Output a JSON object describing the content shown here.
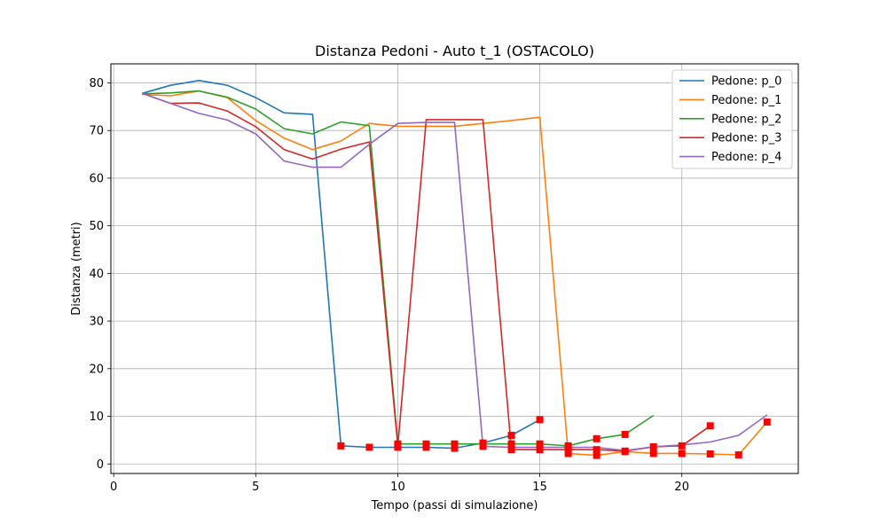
{
  "chart_data": {
    "type": "line",
    "title": "Distanza Pedoni - Auto t_1 (OSTACOLO)",
    "xlabel": "Tempo (passi di simulazione)",
    "ylabel": "Distanza (metri)",
    "xlim": [
      -0.1,
      24.1
    ],
    "ylim": [
      -2,
      84
    ],
    "xticks": [
      0,
      5,
      10,
      15,
      20
    ],
    "yticks": [
      0,
      10,
      20,
      30,
      40,
      50,
      60,
      70,
      80
    ],
    "grid": true,
    "legend_position": "top-right",
    "marker_color": "#ff0000",
    "series": [
      {
        "name": "Pedone: p_0",
        "color": "#1f77b4",
        "x": [
          1,
          2,
          3,
          4,
          5,
          6,
          7,
          8,
          9,
          10,
          11,
          12,
          13,
          14,
          15
        ],
        "y": [
          77.8,
          79.5,
          80.5,
          79.5,
          76.9,
          73.7,
          73.4,
          3.8,
          3.5,
          3.5,
          3.5,
          3.3,
          4.4,
          6.0,
          9.3
        ],
        "markers": [
          8,
          9,
          10,
          11,
          12,
          13,
          14,
          15
        ]
      },
      {
        "name": "Pedone: p_1",
        "color": "#ff7f0e",
        "x": [
          1,
          2,
          3,
          4,
          5,
          6,
          7,
          8,
          9,
          10,
          11,
          12,
          13,
          14,
          15,
          16,
          17,
          18,
          19,
          20,
          21,
          22,
          23
        ],
        "y": [
          77.6,
          77.3,
          78.3,
          76.9,
          72.1,
          68.4,
          66.0,
          67.8,
          71.5,
          70.9,
          70.9,
          70.9,
          71.5,
          72.1,
          72.8,
          2.2,
          1.8,
          2.6,
          2.2,
          2.2,
          2.1,
          1.9,
          8.8
        ],
        "markers": [
          16,
          17,
          18,
          19,
          20,
          21,
          22,
          23
        ]
      },
      {
        "name": "Pedone: p_2",
        "color": "#2ca02c",
        "x": [
          1,
          2,
          3,
          4,
          5,
          6,
          7,
          8,
          9,
          10,
          11,
          12,
          13,
          14,
          15,
          16,
          17,
          18,
          19
        ],
        "y": [
          77.7,
          77.9,
          78.3,
          77.0,
          74.5,
          70.4,
          69.3,
          71.8,
          71.0,
          4.2,
          4.2,
          4.2,
          4.2,
          4.2,
          4.2,
          3.8,
          5.3,
          6.2,
          10.2
        ],
        "markers": [
          10,
          11,
          12,
          13,
          14,
          15,
          16,
          17,
          18
        ]
      },
      {
        "name": "Pedone: p_3",
        "color": "#d62728",
        "x": [
          1,
          2,
          3,
          4,
          5,
          6,
          7,
          8,
          9,
          10,
          11,
          12,
          13,
          14,
          15,
          16,
          17,
          18,
          19,
          20,
          21
        ],
        "y": [
          77.8,
          75.7,
          75.8,
          74.1,
          70.8,
          66.0,
          64.0,
          66.1,
          67.6,
          3.8,
          72.3,
          72.3,
          72.3,
          3.0,
          3.0,
          3.0,
          3.0,
          2.7,
          3.6,
          3.8,
          8.0
        ],
        "markers": [
          10,
          14,
          15,
          16,
          17,
          18,
          19,
          20,
          21
        ]
      },
      {
        "name": "Pedone: p_4",
        "color": "#9467bd",
        "x": [
          1,
          2,
          3,
          4,
          5,
          6,
          7,
          8,
          9,
          10,
          11,
          12,
          13,
          14,
          15,
          16,
          17,
          18,
          19,
          20,
          21,
          22,
          23
        ],
        "y": [
          77.8,
          75.7,
          73.6,
          72.2,
          69.3,
          63.6,
          62.3,
          62.3,
          67.1,
          71.5,
          71.7,
          71.7,
          3.7,
          3.5,
          3.5,
          3.5,
          3.5,
          2.8,
          3.6,
          4.0,
          4.6,
          6.0,
          10.3
        ],
        "markers": [
          13
        ]
      }
    ]
  }
}
